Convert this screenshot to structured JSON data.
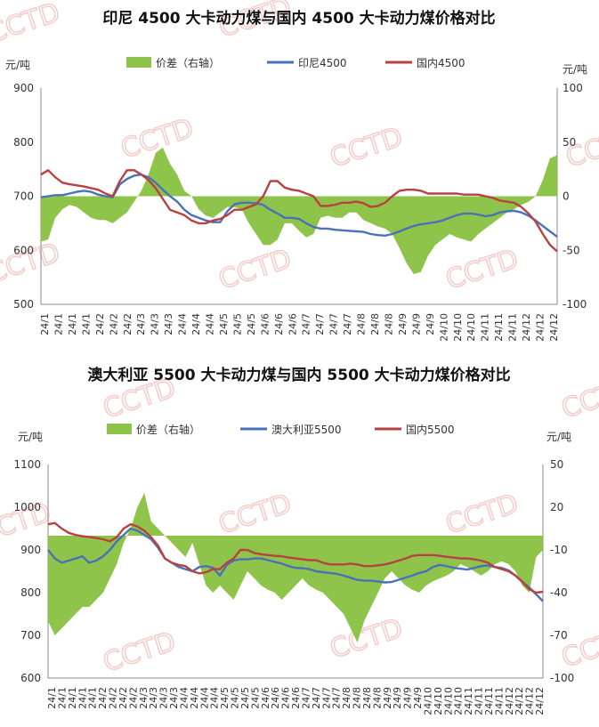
{
  "watermark": "CCTD",
  "chart_data": [
    {
      "type": "line",
      "title": "印尼 4500 大卡动力煤与国内 4500 大卡动力煤价格对比",
      "left_unit": "元/吨",
      "right_unit": "元/吨",
      "ylim": [
        500,
        900
      ],
      "y_ticks": [
        "900",
        "800",
        "700",
        "600",
        "500"
      ],
      "y2lim": [
        -100,
        100
      ],
      "y2_ticks": [
        "100",
        "50",
        "0",
        "-50",
        "-100"
      ],
      "x_labels": [
        "24/1",
        "24/1",
        "24/1",
        "24/1",
        "24/2",
        "24/2",
        "24/2",
        "24/3",
        "24/3",
        "24/3",
        "24/4",
        "24/4",
        "24/4",
        "24/5",
        "24/5",
        "24/5",
        "24/6",
        "24/6",
        "24/6",
        "24/7",
        "24/7",
        "24/7",
        "24/7",
        "24/8",
        "24/8",
        "24/8",
        "24/9",
        "24/9",
        "24/9",
        "24/10",
        "24/10",
        "24/10",
        "24/11",
        "24/11",
        "24/11",
        "24/12",
        "24/12",
        "24/12"
      ],
      "legend": [
        "价差（右轴）",
        "印尼4500",
        "国内4500"
      ],
      "series": [
        {
          "name": "价差（右轴）",
          "axis": "right",
          "color": "#8ec449",
          "values": [
            -42,
            -40,
            -20,
            -12,
            -8,
            -10,
            -15,
            -20,
            -22,
            -22,
            -25,
            -20,
            -15,
            -5,
            5,
            20,
            40,
            45,
            30,
            20,
            5,
            0,
            -12,
            -18,
            -20,
            -15,
            -10,
            -10,
            -12,
            -25,
            -35,
            -45,
            -45,
            -40,
            -25,
            -25,
            -32,
            -38,
            -35,
            -20,
            -18,
            -20,
            -20,
            -15,
            -15,
            -22,
            -25,
            -28,
            -30,
            -35,
            -48,
            -62,
            -72,
            -70,
            -55,
            -45,
            -40,
            -35,
            -38,
            -40,
            -42,
            -35,
            -30,
            -25,
            -20,
            -15,
            -12,
            -8,
            -5,
            0,
            15,
            35,
            38
          ]
        },
        {
          "name": "印尼4500",
          "axis": "left",
          "color": "#4a72b8",
          "values": [
            698,
            700,
            702,
            702,
            705,
            708,
            710,
            708,
            703,
            700,
            698,
            722,
            732,
            738,
            740,
            735,
            725,
            712,
            700,
            690,
            675,
            665,
            660,
            655,
            652,
            652,
            672,
            685,
            688,
            688,
            687,
            684,
            675,
            668,
            660,
            660,
            658,
            650,
            643,
            640,
            640,
            638,
            637,
            636,
            635,
            634,
            630,
            628,
            627,
            630,
            635,
            640,
            645,
            648,
            650,
            652,
            655,
            660,
            665,
            668,
            668,
            666,
            663,
            665,
            670,
            672,
            673,
            670,
            664,
            655,
            645,
            635,
            625
          ]
        },
        {
          "name": "国内4500",
          "axis": "left",
          "color": "#b84242",
          "values": [
            740,
            748,
            735,
            725,
            722,
            720,
            718,
            715,
            712,
            705,
            700,
            728,
            748,
            748,
            740,
            730,
            715,
            695,
            675,
            670,
            665,
            655,
            650,
            650,
            655,
            658,
            665,
            675,
            675,
            680,
            685,
            700,
            728,
            728,
            716,
            712,
            710,
            705,
            700,
            682,
            682,
            684,
            688,
            688,
            690,
            687,
            680,
            682,
            688,
            700,
            710,
            712,
            712,
            710,
            705,
            705,
            705,
            705,
            705,
            703,
            703,
            703,
            700,
            697,
            692,
            690,
            688,
            680,
            668,
            653,
            630,
            610,
            598
          ]
        }
      ]
    },
    {
      "type": "line",
      "title": "澳大利亚 5500 大卡动力煤与国内 5500 大卡动力煤价格对比",
      "left_unit": "元/吨",
      "right_unit": "元/吨",
      "ylim": [
        600,
        1100
      ],
      "y_ticks": [
        "1100",
        "1000",
        "900",
        "800",
        "700",
        "600"
      ],
      "y2lim": [
        -100,
        50
      ],
      "y2_ticks": [
        "50",
        "20",
        "-10",
        "-40",
        "-70",
        "-100"
      ],
      "x_labels": [
        "24/1",
        "24/1",
        "24/1",
        "24/1",
        "24/1",
        "24/2",
        "24/2",
        "24/2",
        "24/2",
        "24/3",
        "24/3",
        "24/3",
        "24/3",
        "24/4",
        "24/4",
        "24/4",
        "24/4",
        "24/5",
        "24/5",
        "24/5",
        "24/5",
        "24/6",
        "24/6",
        "24/6",
        "24/6",
        "24/7",
        "24/7",
        "24/7",
        "24/7",
        "24/8",
        "24/8",
        "24/8",
        "24/8",
        "24/9",
        "24/9",
        "24/9",
        "24/9",
        "24/10",
        "24/10",
        "24/10",
        "24/10",
        "24/11",
        "24/11",
        "24/11",
        "24/11",
        "24/12",
        "24/12",
        "24/12",
        "24/12"
      ],
      "legend": [
        "价差（右轴）",
        "澳大利亚5500",
        "国内5500"
      ],
      "series": [
        {
          "name": "价差（右轴）",
          "axis": "right",
          "color": "#8ec449",
          "values": [
            -60,
            -70,
            -65,
            -60,
            -55,
            -50,
            -50,
            -45,
            -40,
            -30,
            -20,
            -5,
            5,
            20,
            30,
            10,
            5,
            0,
            -5,
            -10,
            -15,
            -5,
            -20,
            -35,
            -40,
            -35,
            -40,
            -45,
            -35,
            -25,
            -30,
            -35,
            -38,
            -40,
            -45,
            -40,
            -35,
            -30,
            -35,
            -38,
            -40,
            -45,
            -50,
            -55,
            -65,
            -75,
            -60,
            -50,
            -40,
            -30,
            -25,
            -30,
            -35,
            -38,
            -40,
            -35,
            -32,
            -30,
            -28,
            -25,
            -20,
            -22,
            -25,
            -28,
            -25,
            -20,
            -18,
            -20,
            -25,
            -35,
            -40,
            -15,
            -10
          ]
        },
        {
          "name": "澳大利亚5500",
          "axis": "left",
          "color": "#4a72b8",
          "values": [
            900,
            880,
            870,
            875,
            880,
            885,
            870,
            875,
            885,
            900,
            920,
            935,
            950,
            945,
            935,
            925,
            905,
            880,
            870,
            860,
            855,
            850,
            860,
            862,
            858,
            840,
            865,
            875,
            878,
            878,
            880,
            880,
            876,
            872,
            868,
            862,
            858,
            857,
            855,
            850,
            848,
            846,
            844,
            840,
            835,
            830,
            828,
            828,
            826,
            824,
            825,
            830,
            835,
            840,
            846,
            850,
            860,
            865,
            862,
            858,
            856,
            854,
            858,
            862,
            864,
            860,
            858,
            852,
            840,
            826,
            812,
            796,
            780
          ]
        },
        {
          "name": "国内5500",
          "axis": "left",
          "color": "#b84242",
          "values": [
            960,
            963,
            950,
            940,
            935,
            932,
            930,
            928,
            925,
            920,
            930,
            950,
            960,
            955,
            945,
            930,
            910,
            880,
            870,
            865,
            862,
            850,
            845,
            848,
            855,
            855,
            870,
            880,
            900,
            900,
            893,
            890,
            888,
            886,
            885,
            882,
            880,
            878,
            876,
            876,
            870,
            866,
            866,
            866,
            868,
            866,
            862,
            862,
            864,
            866,
            870,
            875,
            880,
            886,
            888,
            888,
            888,
            886,
            884,
            882,
            880,
            880,
            878,
            875,
            870,
            860,
            855,
            850,
            840,
            825,
            808,
            800,
            802
          ]
        }
      ]
    }
  ]
}
